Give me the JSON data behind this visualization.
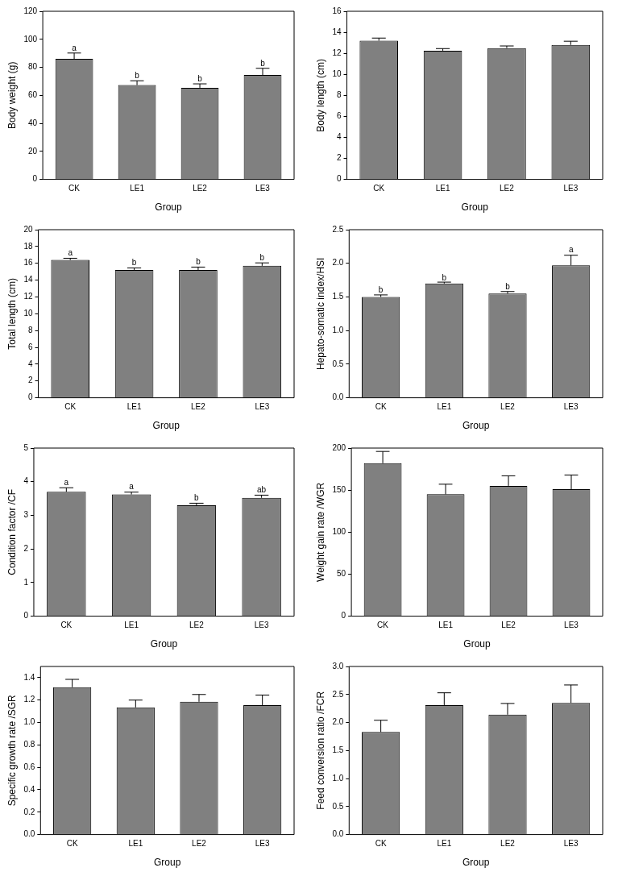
{
  "chart_data": [
    {
      "type": "bar",
      "xlabel": "Group",
      "ylabel": "Body weight (g)",
      "categories": [
        "CK",
        "LE1",
        "LE2",
        "LE3"
      ],
      "values": [
        86,
        67.3,
        65.4,
        74.5
      ],
      "errors": [
        4.2,
        3.1,
        2.8,
        4.8
      ],
      "color": "#808080",
      "ylim": [
        0,
        120
      ],
      "yticks": [
        0,
        20,
        40,
        60,
        80,
        100,
        120
      ],
      "grid": false,
      "legend": false,
      "annotations": [
        {
          "text": "a",
          "x": "CK",
          "y": 90.2
        },
        {
          "text": "b",
          "x": "LE1",
          "y": 70.4
        },
        {
          "text": "b",
          "x": "LE2",
          "y": 68.2
        },
        {
          "text": "b",
          "x": "LE3",
          "y": 79.3
        }
      ]
    },
    {
      "type": "bar",
      "xlabel": "Group",
      "ylabel": "Body length (cm)",
      "categories": [
        "CK",
        "LE1",
        "LE2",
        "LE3"
      ],
      "values": [
        13.2,
        12.25,
        12.5,
        12.8
      ],
      "errors": [
        0.25,
        0.2,
        0.2,
        0.35
      ],
      "color": "#808080",
      "ylim": [
        0,
        16
      ],
      "yticks": [
        0,
        2,
        4,
        6,
        8,
        10,
        12,
        14,
        16
      ],
      "grid": false,
      "legend": false
    },
    {
      "type": "bar",
      "xlabel": "Group",
      "ylabel": "Total length (cm)",
      "categories": [
        "CK",
        "LE1",
        "LE2",
        "LE3"
      ],
      "values": [
        16.4,
        15.2,
        15.2,
        15.7
      ],
      "errors": [
        0.2,
        0.25,
        0.35,
        0.35
      ],
      "color": "#808080",
      "ylim": [
        0,
        20
      ],
      "yticks": [
        0,
        2,
        4,
        6,
        8,
        10,
        12,
        14,
        16,
        18,
        20
      ],
      "grid": false,
      "legend": false,
      "annotations": [
        {
          "text": "a",
          "x": "CK",
          "y": 16.6
        },
        {
          "text": "b",
          "x": "LE1",
          "y": 15.45
        },
        {
          "text": "b",
          "x": "LE2",
          "y": 15.55
        },
        {
          "text": "b",
          "x": "LE3",
          "y": 16.05
        }
      ]
    },
    {
      "type": "bar",
      "xlabel": "Group",
      "ylabel": "Hepato-somatic index/HSI",
      "categories": [
        "CK",
        "LE1",
        "LE2",
        "LE3"
      ],
      "values": [
        1.5,
        1.7,
        1.55,
        1.97
      ],
      "errors": [
        0.03,
        0.02,
        0.03,
        0.15
      ],
      "color": "#808080",
      "ylim": [
        0,
        2.5
      ],
      "yticks": [
        {
          "value": 0,
          "label": "0.0"
        },
        0.5,
        {
          "value": 1,
          "label": "1.0"
        },
        1.5,
        {
          "value": 2,
          "label": "2.0"
        },
        2.5
      ],
      "grid": false,
      "legend": false,
      "annotations": [
        {
          "text": "b",
          "x": "CK",
          "y": 1.53
        },
        {
          "text": "b",
          "x": "LE1",
          "y": 1.71
        },
        {
          "text": "b",
          "x": "LE2",
          "y": 1.58
        },
        {
          "text": "a",
          "x": "LE3",
          "y": 2.12
        }
      ]
    },
    {
      "type": "bar",
      "xlabel": "Group",
      "ylabel": "Condition factor /CF",
      "categories": [
        "CK",
        "LE1",
        "LE2",
        "LE3"
      ],
      "values": [
        3.7,
        3.62,
        3.3,
        3.52
      ],
      "errors": [
        0.12,
        0.07,
        0.06,
        0.08
      ],
      "color": "#808080",
      "ylim": [
        0,
        5
      ],
      "yticks": [
        0,
        1,
        2,
        3,
        4,
        5
      ],
      "grid": false,
      "legend": false,
      "annotations": [
        {
          "text": "a",
          "x": "CK",
          "y": 3.82
        },
        {
          "text": "a",
          "x": "LE1",
          "y": 3.69
        },
        {
          "text": "b",
          "x": "LE2",
          "y": 3.36
        },
        {
          "text": "ab",
          "x": "LE3",
          "y": 3.6
        }
      ]
    },
    {
      "type": "bar",
      "xlabel": "Group",
      "ylabel": "Weight gain rate /WGR",
      "categories": [
        "CK",
        "LE1",
        "LE2",
        "LE3"
      ],
      "values": [
        182,
        145,
        155,
        151
      ],
      "errors": [
        14,
        12,
        12,
        17
      ],
      "color": "#808080",
      "ylim": [
        0,
        200
      ],
      "yticks": [
        0,
        50,
        100,
        150,
        200
      ],
      "grid": false,
      "legend": false
    },
    {
      "type": "bar",
      "xlabel": "Group",
      "ylabel": "Specific growth rate /SGR",
      "categories": [
        "CK",
        "LE1",
        "LE2",
        "LE3"
      ],
      "values": [
        1.315,
        1.135,
        1.185,
        1.155
      ],
      "errors": [
        0.07,
        0.065,
        0.065,
        0.09
      ],
      "color": "#808080",
      "ylim": [
        0,
        1.5
      ],
      "yticks": [
        {
          "value": 0,
          "label": "0.0"
        },
        0.2,
        0.4,
        0.6,
        0.8,
        {
          "value": 1,
          "label": "1.0"
        },
        1.2,
        1.4
      ],
      "grid": false,
      "legend": false
    },
    {
      "type": "bar",
      "xlabel": "Group",
      "ylabel": "Feed conversion ratio /FCR",
      "categories": [
        "CK",
        "LE1",
        "LE2",
        "LE3"
      ],
      "values": [
        1.83,
        2.31,
        2.14,
        2.35
      ],
      "errors": [
        0.21,
        0.22,
        0.2,
        0.32
      ],
      "color": "#808080",
      "ylim": [
        0,
        3
      ],
      "yticks": [
        {
          "value": 0,
          "label": "0.0"
        },
        0.5,
        {
          "value": 1,
          "label": "1.0"
        },
        1.5,
        {
          "value": 2,
          "label": "2.0"
        },
        2.5,
        {
          "value": 3,
          "label": "3.0"
        }
      ],
      "grid": false,
      "legend": false
    }
  ]
}
